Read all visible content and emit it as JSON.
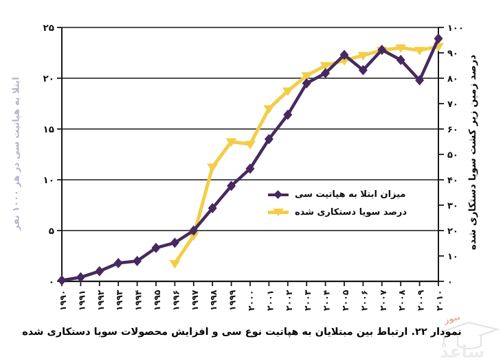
{
  "caption": "نمودار ۲۲. ارتباط بین مبتلایان به هپاتیت نوع سی و افزایش محصولات سویا دستکاری شده",
  "watermark": {
    "brand_main": "ساعد",
    "brand_sub": "نیوز"
  },
  "colors": {
    "hepatitis_line": "#46295f",
    "soy_line": "#f2ce48",
    "grid": "#161616",
    "left_title_text": "#b7b0c9",
    "caption_text": "#000000"
  },
  "chart_data": {
    "type": "line",
    "grid": "horizontal",
    "legend_position": "inside-right-middle",
    "x": [
      1990,
      1991,
      1992,
      1993,
      1994,
      1995,
      1996,
      1997,
      1998,
      1999,
      2000,
      2001,
      2002,
      2003,
      2004,
      2005,
      2006,
      2007,
      2008,
      2009,
      2010
    ],
    "x_tick_labels": [
      "۱۹۹۰",
      "۱۹۹۱",
      "۱۹۹۲",
      "۱۹۹۳",
      "۱۹۹۴",
      "۱۹۹۵",
      "۱۹۹۶",
      "۱۹۹۷",
      "۱۹۹۸",
      "۱۹۹۹",
      "۲۰۰۰",
      "۲۰۰۱",
      "۲۰۰۲",
      "۲۰۰۳",
      "۲۰۰۴",
      "۲۰۰۵",
      "۲۰۰۶",
      "۲۰۰۷",
      "۲۰۰۸",
      "۲۰۰۹",
      "۲۰۱۰"
    ],
    "left_axis": {
      "title": "ابتلا به هپاتیت سی در هر ۱۰۰۰ نفر",
      "range": [
        0,
        25
      ],
      "ticks": [
        0,
        5,
        10,
        15,
        20,
        25
      ],
      "tick_labels": [
        "۰",
        "۵",
        "۱۰",
        "۱۵",
        "۲۰",
        "۲۵"
      ]
    },
    "right_axis": {
      "title": "درصد زمین زیر کشت سویا دستکاری شده",
      "range": [
        0,
        100
      ],
      "ticks": [
        0,
        10,
        20,
        30,
        40,
        50,
        60,
        70,
        80,
        90,
        100
      ],
      "tick_labels": [
        "۰",
        "۱۰",
        "۲۰",
        "۳۰",
        "۴۰",
        "۵۰",
        "۶۰",
        "۷۰",
        "۸۰",
        "۹۰",
        "۱۰۰"
      ]
    },
    "series": [
      {
        "name": "میزان ابتلا به هپاتیت سی",
        "axis": "left",
        "color": "#46295f",
        "marker": "diamond",
        "values": [
          0.1,
          0.4,
          1.0,
          1.8,
          2.0,
          3.3,
          3.8,
          5.0,
          7.2,
          9.4,
          11.1,
          14.0,
          16.4,
          19.5,
          20.5,
          22.3,
          20.8,
          22.8,
          21.8,
          19.8,
          23.9
        ]
      },
      {
        "name": "درصد سویا دستکاری شده",
        "axis": "right",
        "color": "#f2ce48",
        "marker": "triangle-down",
        "values": [
          null,
          null,
          null,
          null,
          null,
          null,
          7,
          18,
          45,
          55,
          54,
          68,
          75,
          81,
          85,
          87,
          89,
          91,
          92,
          91,
          92.5
        ]
      }
    ]
  }
}
